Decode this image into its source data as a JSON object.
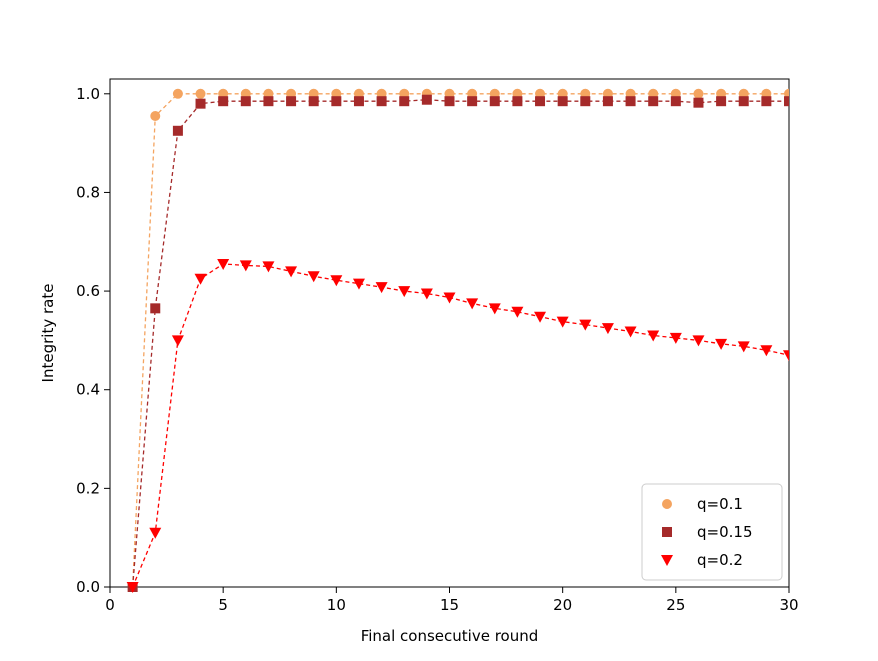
{
  "chart_data": {
    "type": "line",
    "xlabel": "Final consecutive round",
    "ylabel": "Integrity rate",
    "xlim": [
      0,
      30
    ],
    "ylim": [
      0,
      1.03
    ],
    "xticks": [
      "0",
      "5",
      "10",
      "15",
      "20",
      "25",
      "30"
    ],
    "yticks": [
      "0.0",
      "0.2",
      "0.4",
      "0.6",
      "0.8",
      "1.0"
    ],
    "grid": false,
    "legend_position": "bottom-right",
    "x": [
      1,
      2,
      3,
      4,
      5,
      6,
      7,
      8,
      9,
      10,
      11,
      12,
      13,
      14,
      15,
      16,
      17,
      18,
      19,
      20,
      21,
      22,
      23,
      24,
      25,
      26,
      27,
      28,
      29,
      30
    ],
    "series": [
      {
        "name": "q=0.1",
        "color": "#F4A460",
        "marker": "circle",
        "line_style": "dashed",
        "values": [
          0.0,
          0.955,
          1.0,
          1.0,
          1.0,
          1.0,
          1.0,
          1.0,
          1.0,
          1.0,
          1.0,
          1.0,
          1.0,
          1.0,
          1.0,
          1.0,
          1.0,
          1.0,
          1.0,
          1.0,
          1.0,
          1.0,
          1.0,
          1.0,
          1.0,
          1.0,
          1.0,
          1.0,
          1.0,
          1.0
        ]
      },
      {
        "name": "q=0.15",
        "color": "#A52A2A",
        "marker": "square",
        "line_style": "dashed",
        "values": [
          0.0,
          0.565,
          0.925,
          0.98,
          0.985,
          0.985,
          0.985,
          0.985,
          0.985,
          0.985,
          0.985,
          0.985,
          0.985,
          0.988,
          0.985,
          0.985,
          0.985,
          0.985,
          0.985,
          0.985,
          0.985,
          0.985,
          0.985,
          0.985,
          0.985,
          0.982,
          0.985,
          0.985,
          0.985,
          0.985
        ]
      },
      {
        "name": "q=0.2",
        "color": "#FF0000",
        "marker": "triangle-down",
        "line_style": "dashed",
        "values": [
          0.0,
          0.11,
          0.5,
          0.625,
          0.655,
          0.652,
          0.65,
          0.64,
          0.63,
          0.622,
          0.615,
          0.608,
          0.6,
          0.595,
          0.587,
          0.575,
          0.565,
          0.558,
          0.548,
          0.538,
          0.532,
          0.525,
          0.518,
          0.51,
          0.505,
          0.5,
          0.493,
          0.488,
          0.48,
          0.47
        ]
      }
    ]
  }
}
